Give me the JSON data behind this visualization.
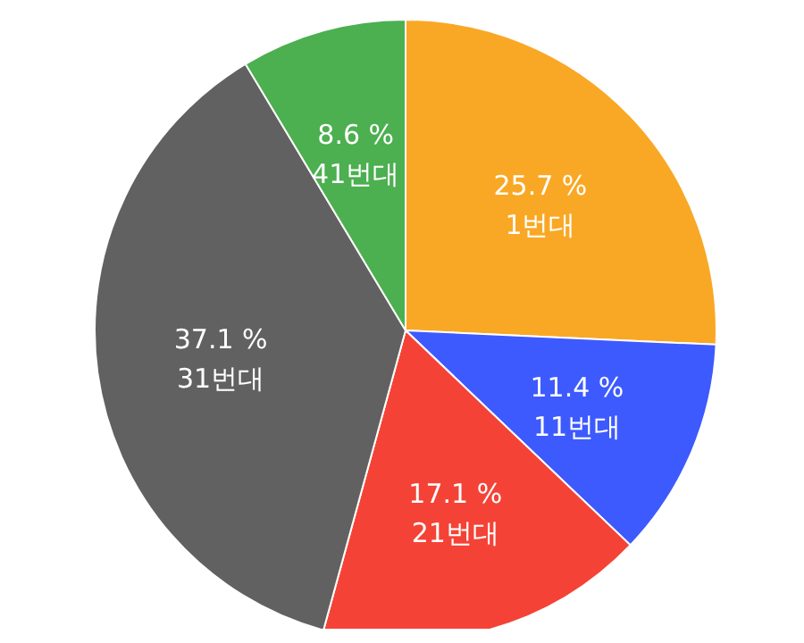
{
  "chart_data": {
    "type": "pie",
    "categories": [
      "1번대",
      "11번대",
      "21번대",
      "31번대",
      "41번대"
    ],
    "values": [
      25.7,
      11.4,
      17.1,
      37.1,
      8.6
    ],
    "colors": [
      "#f9a825",
      "#3d5afe",
      "#f44336",
      "#616161",
      "#4caf50"
    ],
    "value_labels": [
      "25.7 %",
      "11.4 %",
      "17.1 %",
      "37.1 %",
      "8.6 %"
    ]
  }
}
